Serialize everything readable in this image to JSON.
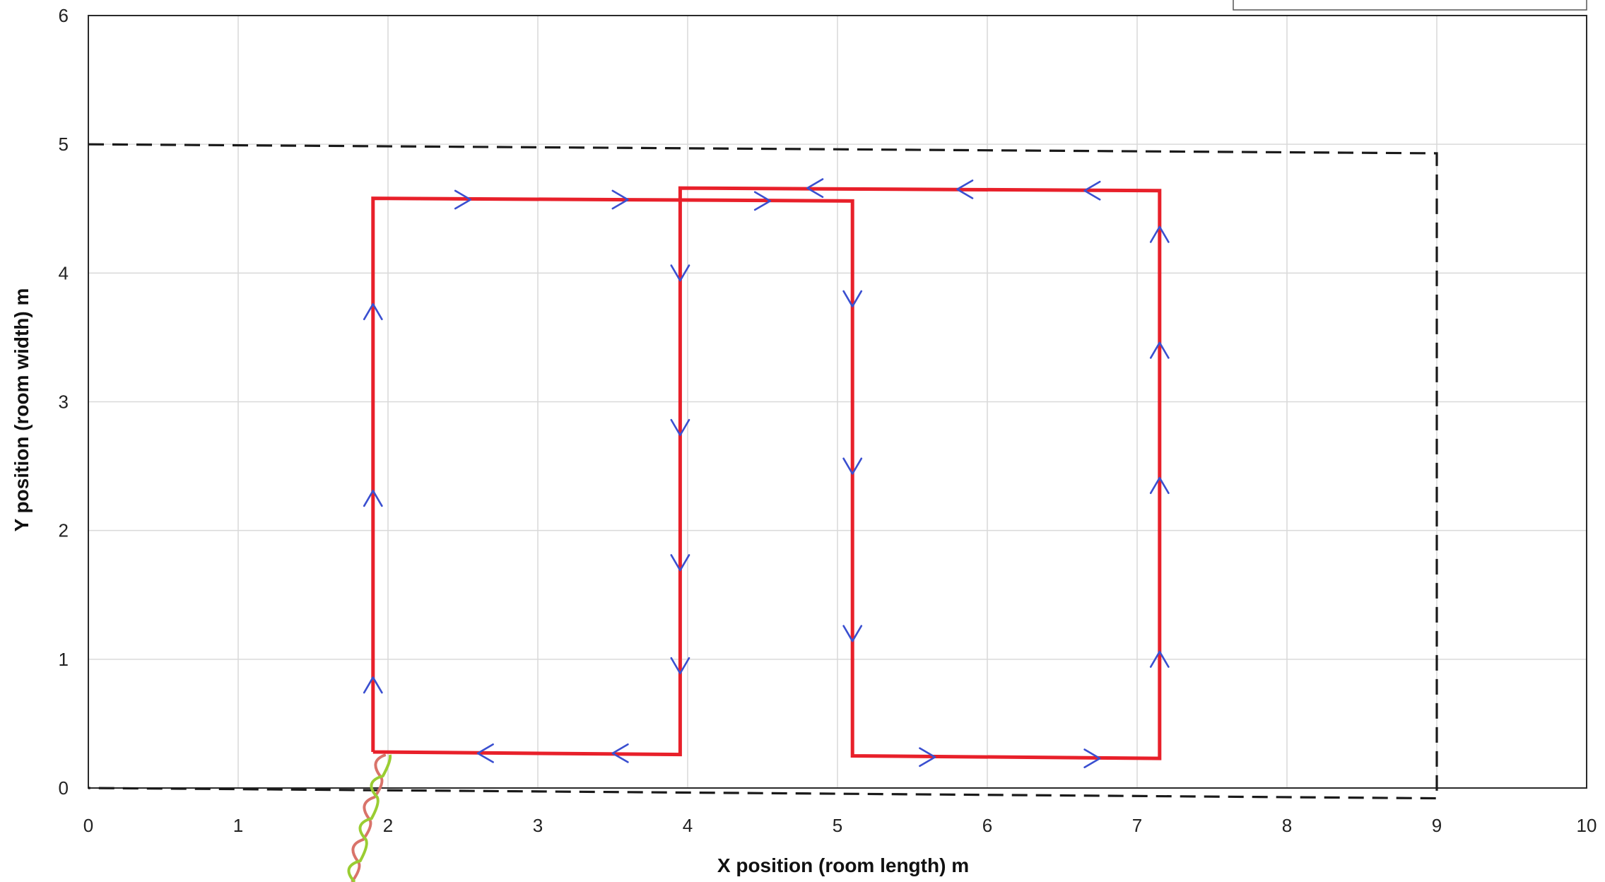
{
  "chart_data": {
    "type": "line",
    "title": "",
    "xlabel": "X position (room length) m",
    "ylabel": "Y position (room width) m",
    "xlim": [
      0,
      10
    ],
    "ylim": [
      0,
      6
    ],
    "x_ticks": [
      "0",
      "1",
      "2",
      "3",
      "4",
      "5",
      "6",
      "7",
      "8",
      "9",
      "10"
    ],
    "y_ticks": [
      "0",
      "1",
      "2",
      "3",
      "4",
      "5",
      "6"
    ],
    "grid": true,
    "legend": "top-right",
    "colors": {
      "path": "#e8202a",
      "boundary": "#1a1a1a",
      "arrows": "#3a4fd0",
      "cable_a": "#d9736a",
      "cable_b": "#9acd32"
    },
    "series": [
      {
        "style": "solid",
        "color": "#e8202a",
        "x": [
          1.9,
          1.9,
          5.1,
          5.1,
          7.15,
          7.15,
          3.95,
          3.95,
          1.9
        ],
        "y": [
          0.28,
          4.58,
          4.56,
          0.25,
          0.23,
          4.64,
          4.66,
          0.26,
          0.28
        ]
      },
      {
        "style": "dashed",
        "color": "#1a1a1a",
        "x": [
          0,
          9,
          9,
          0,
          0
        ],
        "y": [
          5.0,
          4.93,
          -0.08,
          0,
          0
        ]
      }
    ],
    "direction_arrows": [
      {
        "x": 1.9,
        "y": 0.8,
        "dir": "up"
      },
      {
        "x": 1.9,
        "y": 2.25,
        "dir": "up"
      },
      {
        "x": 1.9,
        "y": 3.7,
        "dir": "up"
      },
      {
        "x": 2.5,
        "y": 4.57,
        "dir": "right"
      },
      {
        "x": 3.55,
        "y": 4.57,
        "dir": "right"
      },
      {
        "x": 4.5,
        "y": 4.56,
        "dir": "right"
      },
      {
        "x": 5.1,
        "y": 3.8,
        "dir": "down"
      },
      {
        "x": 5.1,
        "y": 2.5,
        "dir": "down"
      },
      {
        "x": 5.1,
        "y": 1.2,
        "dir": "down"
      },
      {
        "x": 5.6,
        "y": 0.24,
        "dir": "right"
      },
      {
        "x": 6.7,
        "y": 0.23,
        "dir": "right"
      },
      {
        "x": 7.15,
        "y": 1.0,
        "dir": "up"
      },
      {
        "x": 7.15,
        "y": 2.35,
        "dir": "up"
      },
      {
        "x": 7.15,
        "y": 3.4,
        "dir": "up"
      },
      {
        "x": 7.15,
        "y": 4.3,
        "dir": "up"
      },
      {
        "x": 6.7,
        "y": 4.64,
        "dir": "left"
      },
      {
        "x": 5.85,
        "y": 4.65,
        "dir": "left"
      },
      {
        "x": 4.85,
        "y": 4.66,
        "dir": "left"
      },
      {
        "x": 3.95,
        "y": 4.0,
        "dir": "down"
      },
      {
        "x": 3.95,
        "y": 2.8,
        "dir": "down"
      },
      {
        "x": 3.95,
        "y": 1.75,
        "dir": "down"
      },
      {
        "x": 3.95,
        "y": 0.95,
        "dir": "down"
      },
      {
        "x": 3.55,
        "y": 0.27,
        "dir": "left"
      },
      {
        "x": 2.65,
        "y": 0.27,
        "dir": "left"
      }
    ]
  }
}
